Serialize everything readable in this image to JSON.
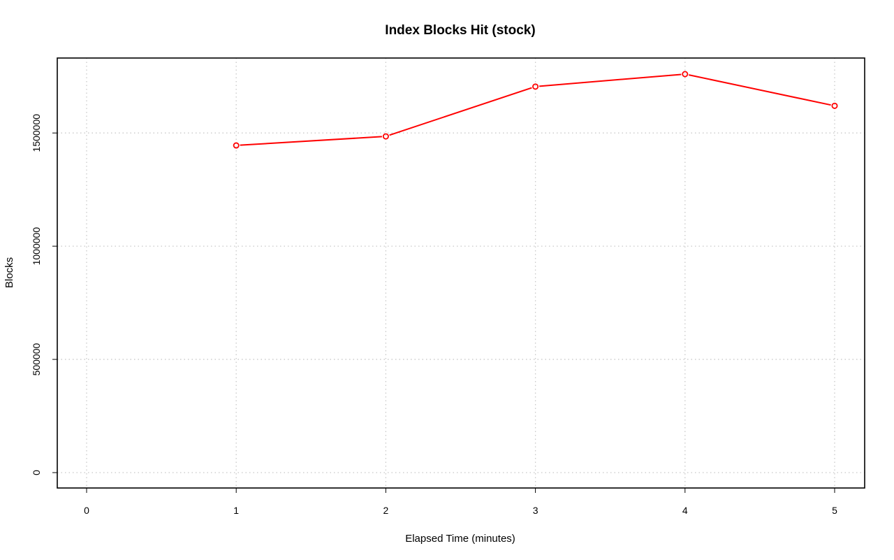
{
  "chart_data": {
    "type": "line",
    "title": "Index Blocks Hit (stock)",
    "xlabel": "Elapsed Time (minutes)",
    "ylabel": "Blocks",
    "xlim": [
      0,
      5
    ],
    "ylim": [
      0,
      1760000
    ],
    "x_ticks": [
      0,
      1,
      2,
      3,
      4,
      5
    ],
    "y_ticks": [
      0,
      500000,
      1000000,
      1500000
    ],
    "grid": true,
    "series": [
      {
        "color": "#ff0000",
        "marker": "open-circle",
        "x": [
          1,
          2,
          3,
          4,
          5
        ],
        "y": [
          1445000,
          1485000,
          1705000,
          1760000,
          1620000
        ]
      }
    ]
  }
}
